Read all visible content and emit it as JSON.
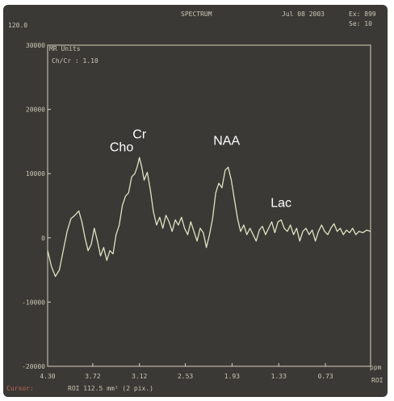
{
  "header": {
    "top_left_value": "120.0",
    "title": "SPECTRUM",
    "date": "Jul 08 2003",
    "ex_label": "Ex: 899",
    "se_label": "Se: 10"
  },
  "plot_labels": {
    "units_label": "MR Units",
    "ratio_label": "Ch/Cr : 1.10"
  },
  "footer": {
    "cursor_text": "Cursor:",
    "roi_text": "ROI 112.5 mm² (2 pix.)",
    "ppm_label": "ppm",
    "roi_right": "ROI"
  },
  "colors": {
    "background": "#3b3935",
    "plot_border": "#d7d4bf",
    "trace": "#dfe3c2",
    "text": "#c9c6b5",
    "accent_red": "#c46a5a"
  },
  "chart_data": {
    "type": "line",
    "title": "SPECTRUM",
    "xlabel": "ppm",
    "ylabel": "MR Units",
    "x_reversed": true,
    "xlim": [
      4.3,
      0.15
    ],
    "ylim": [
      -20000,
      30000
    ],
    "x_ticks": [
      "4.30",
      "3.72",
      "3.12",
      "2.53",
      "1.93",
      "1.33",
      "0.73"
    ],
    "y_ticks": [
      {
        "value": 20000,
        "label": "20000"
      },
      {
        "value": 10000,
        "label": "10000"
      },
      {
        "value": 0,
        "label": "0"
      },
      {
        "value": -10000,
        "label": "-10000"
      },
      {
        "value": -20000,
        "label": "-20000"
      },
      {
        "value": 30000,
        "label": "30000"
      }
    ],
    "annotations": [
      {
        "text": "Cho",
        "x": 3.35,
        "y": 13500
      },
      {
        "text": "Cr",
        "x": 3.12,
        "y": 15500
      },
      {
        "text": "NAA",
        "x": 2.0,
        "y": 14500
      },
      {
        "text": "Lac",
        "x": 1.3,
        "y": 4800
      }
    ],
    "series": [
      {
        "values": [
          [
            4.3,
            -2000
          ],
          [
            4.25,
            -4500
          ],
          [
            4.2,
            -6000
          ],
          [
            4.15,
            -5000
          ],
          [
            4.1,
            -2000
          ],
          [
            4.05,
            1000
          ],
          [
            4.0,
            3000
          ],
          [
            3.95,
            3500
          ],
          [
            3.9,
            4200
          ],
          [
            3.86,
            2500
          ],
          [
            3.82,
            0
          ],
          [
            3.78,
            -2000
          ],
          [
            3.74,
            -1000
          ],
          [
            3.7,
            1500
          ],
          [
            3.66,
            -500
          ],
          [
            3.62,
            -2800
          ],
          [
            3.58,
            -1500
          ],
          [
            3.54,
            -3500
          ],
          [
            3.5,
            -2000
          ],
          [
            3.46,
            -2500
          ],
          [
            3.42,
            500
          ],
          [
            3.38,
            2000
          ],
          [
            3.34,
            5000
          ],
          [
            3.3,
            6500
          ],
          [
            3.26,
            7000
          ],
          [
            3.22,
            9500
          ],
          [
            3.18,
            10000
          ],
          [
            3.15,
            11000
          ],
          [
            3.12,
            12500
          ],
          [
            3.09,
            11000
          ],
          [
            3.06,
            9000
          ],
          [
            3.02,
            10200
          ],
          [
            2.98,
            7500
          ],
          [
            2.94,
            4000
          ],
          [
            2.9,
            2000
          ],
          [
            2.86,
            3200
          ],
          [
            2.82,
            1500
          ],
          [
            2.78,
            3500
          ],
          [
            2.74,
            2500
          ],
          [
            2.7,
            1000
          ],
          [
            2.66,
            2800
          ],
          [
            2.62,
            2000
          ],
          [
            2.58,
            3200
          ],
          [
            2.54,
            1500
          ],
          [
            2.5,
            500
          ],
          [
            2.46,
            2500
          ],
          [
            2.42,
            1000
          ],
          [
            2.38,
            -500
          ],
          [
            2.34,
            1500
          ],
          [
            2.3,
            800
          ],
          [
            2.26,
            -1500
          ],
          [
            2.22,
            500
          ],
          [
            2.18,
            3000
          ],
          [
            2.14,
            7000
          ],
          [
            2.1,
            8500
          ],
          [
            2.06,
            7800
          ],
          [
            2.02,
            10500
          ],
          [
            1.98,
            11000
          ],
          [
            1.94,
            9000
          ],
          [
            1.9,
            6000
          ],
          [
            1.86,
            3000
          ],
          [
            1.82,
            1000
          ],
          [
            1.78,
            2000
          ],
          [
            1.74,
            500
          ],
          [
            1.7,
            1500
          ],
          [
            1.66,
            500
          ],
          [
            1.62,
            -500
          ],
          [
            1.58,
            1200
          ],
          [
            1.54,
            1800
          ],
          [
            1.5,
            500
          ],
          [
            1.46,
            1500
          ],
          [
            1.42,
            2500
          ],
          [
            1.38,
            800
          ],
          [
            1.34,
            2500
          ],
          [
            1.3,
            2800
          ],
          [
            1.26,
            1500
          ],
          [
            1.22,
            1000
          ],
          [
            1.18,
            2000
          ],
          [
            1.14,
            500
          ],
          [
            1.1,
            1500
          ],
          [
            1.06,
            -500
          ],
          [
            1.02,
            1000
          ],
          [
            0.98,
            1500
          ],
          [
            0.94,
            500
          ],
          [
            0.9,
            1200
          ],
          [
            0.86,
            -500
          ],
          [
            0.82,
            1000
          ],
          [
            0.78,
            2000
          ],
          [
            0.74,
            1000
          ],
          [
            0.7,
            500
          ],
          [
            0.66,
            1500
          ],
          [
            0.62,
            2200
          ],
          [
            0.58,
            1000
          ],
          [
            0.54,
            1500
          ],
          [
            0.5,
            500
          ],
          [
            0.46,
            1200
          ],
          [
            0.42,
            800
          ],
          [
            0.38,
            1500
          ],
          [
            0.34,
            500
          ],
          [
            0.3,
            1000
          ],
          [
            0.25,
            800
          ],
          [
            0.2,
            1200
          ],
          [
            0.15,
            1000
          ]
        ]
      }
    ]
  }
}
